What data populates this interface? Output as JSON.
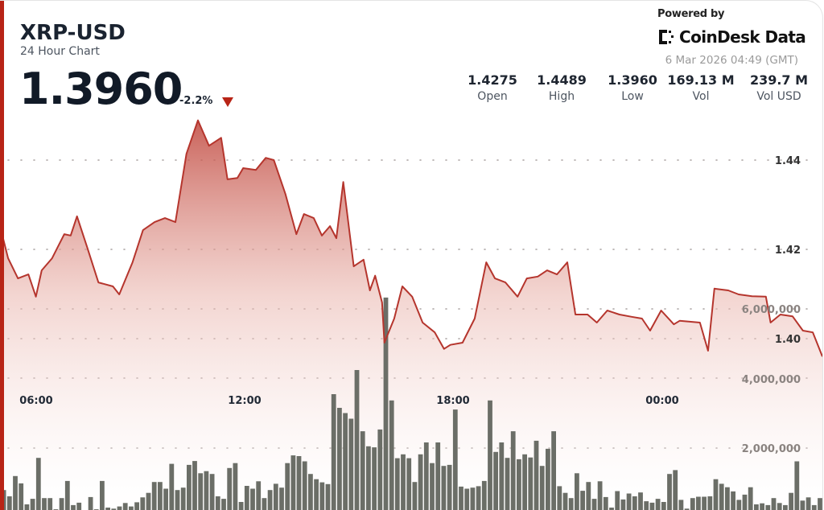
{
  "header": {
    "title": "XRP-USD",
    "subtitle": "24 Hour Chart",
    "price": "1.3960",
    "change": "-2.2%",
    "change_direction": "down",
    "powered_by": "Powered by",
    "brand": "CoinDesk Data",
    "timestamp": "6 Mar 2026 04:49 (GMT)"
  },
  "stats": [
    {
      "value": "1.4275",
      "label": "Open"
    },
    {
      "value": "1.4489",
      "label": "High"
    },
    {
      "value": "1.3960",
      "label": "Low"
    },
    {
      "value": "169.13 M",
      "label": "Vol"
    },
    {
      "value": "239.7 M",
      "label": "Vol USD"
    }
  ],
  "colors": {
    "accent": "#b82416",
    "line": "#b5352d",
    "volume_bar": "#6b6e67",
    "text": "#1a2330"
  },
  "chart_data": {
    "type": "line",
    "grid": true,
    "x_tick_labels": [
      "06:00",
      "12:00",
      "18:00",
      "00:00"
    ],
    "price_tick_labels": [
      "1.44",
      "1.42",
      "1.40"
    ],
    "volume_tick_labels": [
      "6,000,000",
      "4,000,000",
      "2,000,000"
    ],
    "price_axis": {
      "side": "right",
      "ticks": [
        1.44,
        1.42,
        1.4
      ]
    },
    "volume_axis": {
      "side": "right",
      "ticks": [
        6000000,
        4000000,
        2000000
      ]
    },
    "price_series": {
      "x": [
        "04:58",
        "05:12",
        "05:29",
        "05:47",
        "06:00",
        "06:10",
        "06:28",
        "06:49",
        "07:00",
        "07:11",
        "07:28",
        "07:48",
        "08:13",
        "08:24",
        "08:47",
        "09:05",
        "09:25",
        "09:43",
        "10:01",
        "10:20",
        "10:40",
        "10:59",
        "11:20",
        "11:31",
        "11:48",
        "11:58",
        "12:20",
        "12:37",
        "12:51",
        "13:11",
        "13:30",
        "13:43",
        "14:00",
        "14:14",
        "14:28",
        "14:39",
        "14:51",
        "15:09",
        "15:26",
        "15:37",
        "15:46",
        "15:58",
        "16:02",
        "16:19",
        "16:33",
        "16:50",
        "17:08",
        "17:29",
        "17:45",
        "17:56",
        "18:17",
        "18:38",
        "18:58",
        "19:13",
        "19:31",
        "19:52",
        "20:08",
        "20:27",
        "20:43",
        "21:00",
        "21:18",
        "21:32",
        "21:53",
        "22:09",
        "22:27",
        "22:48",
        "23:09",
        "23:27",
        "23:41",
        "00:00",
        "00:22",
        "00:32",
        "01:07",
        "01:21",
        "01:32",
        "01:56",
        "02:14",
        "02:37",
        "03:01",
        "03:09",
        "03:26",
        "03:47",
        "04:05",
        "04:22",
        "04:49"
      ],
      "y": [
        1.4252,
        1.418,
        1.4135,
        1.4144,
        1.4094,
        1.4153,
        1.418,
        1.4234,
        1.4231,
        1.4274,
        1.4207,
        1.4126,
        1.4117,
        1.4099,
        1.4171,
        1.4243,
        1.4261,
        1.427,
        1.4261,
        1.4414,
        1.4489,
        1.4432,
        1.445,
        1.4357,
        1.436,
        1.4382,
        1.4378,
        1.4405,
        1.44,
        1.4324,
        1.4234,
        1.4279,
        1.427,
        1.4231,
        1.4252,
        1.4225,
        1.4351,
        1.4162,
        1.4177,
        1.4108,
        1.4141,
        1.4081,
        1.3991,
        1.4045,
        1.4117,
        1.4094,
        1.4036,
        1.4014,
        1.3977,
        1.3986,
        1.3991,
        1.4045,
        1.4171,
        1.4135,
        1.4126,
        1.4094,
        1.4135,
        1.4139,
        1.4153,
        1.4144,
        1.4171,
        1.4054,
        1.4054,
        1.4036,
        1.4063,
        1.4054,
        1.4049,
        1.4045,
        1.4018,
        1.4063,
        1.4032,
        1.404,
        1.4036,
        1.3973,
        1.4112,
        1.4108,
        1.4099,
        1.4095,
        1.4094,
        1.4036,
        1.4054,
        1.405,
        1.4018,
        1.4014,
        1.396
      ]
    },
    "volume_series": {
      "start": "05:00",
      "interval_minutes": 10,
      "values_millions": [
        0.8,
        0.62,
        1.2,
        0.99,
        0.39,
        0.55,
        1.72,
        0.57,
        0.57,
        0.25,
        0.57,
        1.06,
        0.37,
        0.44,
        0.2,
        0.6,
        0.25,
        1.06,
        0.3,
        0.27,
        0.33,
        0.43,
        0.33,
        0.45,
        0.59,
        0.72,
        1.03,
        1.03,
        0.84,
        1.55,
        0.8,
        0.87,
        1.52,
        1.63,
        1.28,
        1.34,
        1.26,
        0.62,
        0.55,
        1.43,
        1.57,
        0.46,
        0.92,
        0.84,
        1.05,
        0.57,
        0.8,
        0.98,
        0.87,
        1.57,
        1.79,
        1.77,
        1.62,
        1.26,
        1.11,
        1.02,
        0.97,
        3.54,
        3.15,
        3.0,
        2.84,
        4.23,
        2.48,
        2.05,
        2.02,
        2.53,
        6.3,
        3.36,
        1.71,
        1.82,
        1.71,
        1.03,
        1.82,
        2.16,
        1.57,
        2.16,
        1.49,
        1.52,
        3.1,
        0.9,
        0.84,
        0.87,
        0.91,
        1.06,
        3.36,
        1.89,
        2.16,
        1.72,
        2.48,
        1.68,
        1.82,
        1.73,
        2.21,
        1.49,
        1.98,
        2.48,
        0.91,
        0.72,
        0.57,
        1.28,
        0.78,
        1.03,
        0.55,
        1.05,
        0.6,
        0.3,
        0.77,
        0.53,
        0.7,
        0.62,
        0.73,
        0.48,
        0.44,
        0.55,
        0.46,
        1.26,
        1.37,
        0.52,
        0.27,
        0.57,
        0.61,
        0.61,
        0.62,
        1.11,
        0.98,
        0.88,
        0.76,
        0.52,
        0.67,
        0.88,
        0.39,
        0.42,
        0.37,
        0.57,
        0.43,
        0.37,
        0.72,
        1.62,
        0.5,
        0.59,
        0.37,
        0.57,
        0.5,
        1.95
      ]
    }
  }
}
